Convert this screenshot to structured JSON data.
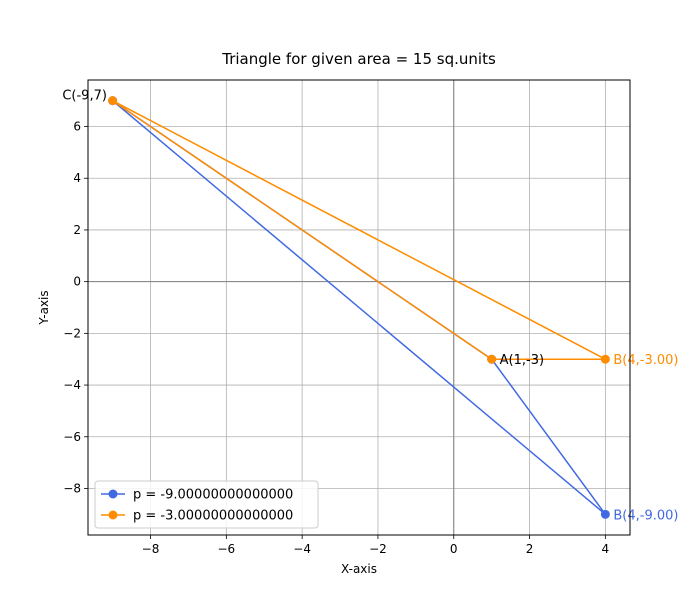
{
  "chart_data": {
    "type": "line",
    "title": "Triangle for given area = 15 sq.units",
    "xlabel": "X-axis",
    "ylabel": "Y-axis",
    "xlim": [
      -9.65,
      4.65
    ],
    "ylim": [
      -9.8,
      7.8
    ],
    "xticks": [
      -8,
      -6,
      -4,
      -2,
      0,
      2,
      4
    ],
    "yticks": [
      -8,
      -6,
      -4,
      -2,
      0,
      2,
      4,
      6
    ],
    "grid": true,
    "legend_position": "lower-left",
    "series": [
      {
        "name": "p = -9.00000000000000",
        "color": "#4169e1",
        "points": [
          [
            1,
            -3
          ],
          [
            4,
            -9
          ],
          [
            -9,
            7
          ],
          [
            1,
            -3
          ]
        ]
      },
      {
        "name": "p = -3.00000000000000",
        "color": "#ff8c00",
        "points": [
          [
            1,
            -3
          ],
          [
            4,
            -3
          ],
          [
            -9,
            7
          ],
          [
            1,
            -3
          ]
        ]
      }
    ],
    "annotations": [
      {
        "text": "A(1,-3)",
        "x": 1,
        "y": -3,
        "color": "#000000"
      },
      {
        "text": "C(-9,7)",
        "x": -9,
        "y": 7,
        "color": "#000000"
      },
      {
        "text": "B(4,-9.00)",
        "x": 4,
        "y": -9,
        "color": "#4169e1"
      },
      {
        "text": "B(4,-3.00)",
        "x": 4,
        "y": -3,
        "color": "#ff8c00"
      }
    ]
  }
}
